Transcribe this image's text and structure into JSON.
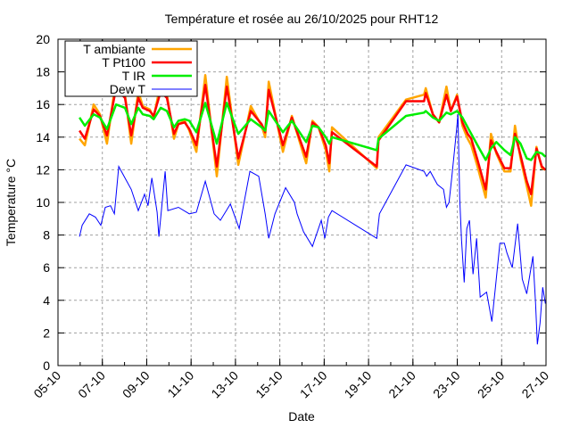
{
  "chart_data": {
    "type": "line",
    "title": "Température et rosée au 26/10/2025 pour RHT12",
    "xlabel": "Date",
    "ylabel": "Temperature °C",
    "xlim_day_of_october": [
      5,
      27
    ],
    "ylim": [
      0,
      20
    ],
    "grid": true,
    "legend_position": "top-left",
    "x_tick_labels": [
      "05-10",
      "07-10",
      "09-10",
      "11-10",
      "13-10",
      "15-10",
      "17-10",
      "19-10",
      "21-10",
      "23-10",
      "25-10",
      "27-10"
    ],
    "x_tick_days": [
      5,
      7,
      9,
      11,
      13,
      15,
      17,
      19,
      21,
      23,
      25,
      27
    ],
    "y_ticks": [
      0,
      2,
      4,
      6,
      8,
      10,
      12,
      14,
      16,
      18,
      20
    ],
    "x_unit": "day of October 2025",
    "series_x": [
      5.97,
      6.21,
      6.61,
      6.89,
      7.21,
      7.62,
      8.02,
      8.3,
      8.62,
      8.82,
      9.14,
      9.31,
      9.63,
      9.91,
      10.23,
      10.43,
      10.71,
      10.92,
      11.24,
      11.64,
      12.16,
      12.61,
      13.13,
      13.69,
      14.18,
      14.34,
      14.5,
      15.14,
      15.54,
      16.19,
      16.47,
      16.75,
      17.07,
      17.23,
      17.35,
      19.37,
      19.45,
      20.69,
      21.5,
      21.58,
      21.9,
      22.18,
      22.51,
      22.71,
      22.99,
      23.23,
      23.47,
      23.63,
      23.91,
      24.28,
      24.52,
      24.76,
      25.12,
      25.4,
      25.6,
      25.85,
      26.13,
      26.33,
      26.57,
      26.81,
      26.97
    ],
    "series": [
      {
        "name": "T ambiante",
        "color": "#ffa500",
        "values": [
          13.9,
          13.5,
          16.0,
          15.4,
          13.6,
          17.6,
          16.6,
          13.6,
          16.8,
          15.9,
          15.7,
          15.2,
          17.3,
          16.6,
          13.9,
          14.8,
          15.0,
          14.4,
          13.1,
          17.8,
          11.6,
          17.7,
          12.3,
          15.9,
          14.7,
          14.0,
          17.4,
          13.1,
          15.3,
          12.4,
          15.0,
          14.6,
          13.2,
          11.9,
          14.6,
          12.1,
          14.0,
          16.3,
          16.6,
          17.0,
          15.4,
          14.9,
          17.1,
          15.6,
          16.6,
          14.7,
          13.9,
          13.5,
          12.2,
          10.3,
          14.2,
          13.0,
          11.9,
          11.9,
          14.7,
          12.7,
          11.0,
          9.8,
          13.4,
          12.1,
          12.0
        ]
      },
      {
        "name": "T Pt100",
        "color": "#ff0000",
        "values": [
          14.4,
          13.9,
          15.7,
          15.3,
          14.1,
          17.0,
          16.4,
          14.1,
          16.4,
          15.8,
          15.6,
          15.3,
          16.8,
          16.4,
          14.2,
          14.8,
          14.9,
          14.5,
          13.5,
          17.2,
          12.2,
          17.1,
          12.7,
          15.6,
          14.8,
          14.3,
          16.9,
          13.5,
          15.2,
          12.8,
          14.9,
          14.6,
          13.5,
          12.4,
          14.3,
          12.2,
          13.8,
          16.2,
          16.2,
          16.7,
          15.4,
          14.9,
          16.6,
          15.6,
          16.5,
          14.9,
          14.2,
          13.9,
          12.6,
          10.8,
          13.8,
          13.1,
          12.1,
          12.1,
          14.2,
          12.9,
          11.3,
          10.5,
          13.3,
          12.2,
          12.0
        ]
      },
      {
        "name": "T IR",
        "color": "#00ee00",
        "values": [
          15.2,
          14.7,
          15.4,
          15.2,
          14.5,
          16.0,
          15.8,
          14.8,
          15.8,
          15.4,
          15.3,
          15.1,
          15.8,
          15.6,
          14.6,
          15.0,
          15.1,
          15.0,
          14.3,
          16.1,
          13.6,
          16.1,
          14.2,
          15.1,
          14.6,
          14.4,
          15.6,
          14.3,
          15.0,
          13.7,
          14.7,
          14.6,
          14.0,
          13.6,
          14.0,
          13.2,
          13.9,
          15.3,
          15.5,
          15.6,
          15.2,
          15.0,
          15.5,
          15.4,
          15.6,
          15.2,
          14.6,
          14.2,
          13.5,
          12.6,
          13.3,
          13.7,
          13.2,
          12.9,
          14.0,
          13.6,
          12.7,
          12.6,
          13.1,
          13.0,
          12.8
        ]
      }
    ],
    "dew": {
      "name": "Dew T",
      "color": "#0000ff",
      "x": [
        5.97,
        6.09,
        6.41,
        6.69,
        6.93,
        7.13,
        7.37,
        7.54,
        7.74,
        8.02,
        8.3,
        8.62,
        8.9,
        9.06,
        9.23,
        9.47,
        9.55,
        9.83,
        9.95,
        10.43,
        10.92,
        11.24,
        11.64,
        12.04,
        12.32,
        12.77,
        13.17,
        13.65,
        14.05,
        14.34,
        14.5,
        14.78,
        15.26,
        15.66,
        15.78,
        16.07,
        16.47,
        16.59,
        16.87,
        17.03,
        17.19,
        17.35,
        19.37,
        19.49,
        20.69,
        21.5,
        21.62,
        21.78,
        22.1,
        22.38,
        22.51,
        22.63,
        22.75,
        22.95,
        23.03,
        23.11,
        23.19,
        23.31,
        23.43,
        23.55,
        23.71,
        23.87,
        24.03,
        24.32,
        24.56,
        24.72,
        24.92,
        25.12,
        25.24,
        25.48,
        25.72,
        25.93,
        26.13,
        26.41,
        26.53,
        26.61,
        26.73,
        26.85,
        26.97
      ],
      "values": [
        7.9,
        8.6,
        9.3,
        9.1,
        8.6,
        9.7,
        9.8,
        9.3,
        12.2,
        11.5,
        10.8,
        9.5,
        10.5,
        9.8,
        11.5,
        9.4,
        7.9,
        11.9,
        9.5,
        9.7,
        9.3,
        9.4,
        11.3,
        9.3,
        8.9,
        9.9,
        8.4,
        11.9,
        11.6,
        9.3,
        7.8,
        9.3,
        10.9,
        10.0,
        9.3,
        8.2,
        7.3,
        7.8,
        8.9,
        7.8,
        9.1,
        9.5,
        7.8,
        9.3,
        12.3,
        11.9,
        11.6,
        11.9,
        11.1,
        10.8,
        9.7,
        10.0,
        11.5,
        14.2,
        15.4,
        10.2,
        7.7,
        5.1,
        8.4,
        8.9,
        5.6,
        7.8,
        4.2,
        4.5,
        2.7,
        4.8,
        7.5,
        7.5,
        6.9,
        6.0,
        8.7,
        5.3,
        4.4,
        6.7,
        3.8,
        1.3,
        2.6,
        4.8,
        3.8
      ]
    }
  }
}
